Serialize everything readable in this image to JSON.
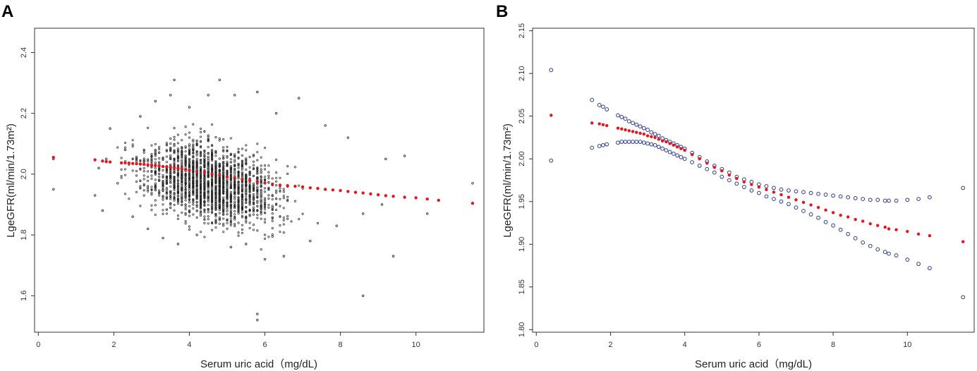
{
  "colors": {
    "scatter": "#222222",
    "fit": "#e8141b",
    "ci": "#2b3990",
    "axis": "#333333"
  },
  "chart_data": [
    {
      "panel": "A",
      "type": "scatter",
      "xlabel": "Serum uric acid（mg/dL)",
      "ylabel": "LgeGFR(ml/min/1.73m²)",
      "xlim": [
        -0.1,
        11.8
      ],
      "ylim": [
        1.48,
        2.48
      ],
      "xticks": [
        0,
        2,
        4,
        6,
        8,
        10
      ],
      "yticks": [
        1.6,
        1.8,
        2.0,
        2.2,
        2.4
      ],
      "ytick_labels": [
        "1.6",
        "1.8",
        "2.0",
        "2.2",
        "2.4"
      ],
      "series": [
        {
          "name": "observations",
          "style": "small open dots, dense cloud (~2000 points)",
          "points": [
            [
              0.4,
              1.95
            ],
            [
              0.4,
              2.05
            ],
            [
              1.5,
              1.93
            ],
            [
              1.6,
              2.02
            ],
            [
              1.7,
              1.88
            ],
            [
              1.9,
              2.15
            ],
            [
              1.8,
              2.05
            ],
            [
              2.1,
              1.97
            ],
            [
              2.3,
              2.08
            ],
            [
              2.5,
              1.86
            ],
            [
              2.7,
              2.19
            ],
            [
              2.9,
              1.82
            ],
            [
              3.1,
              2.24
            ],
            [
              3.3,
              1.79
            ],
            [
              3.5,
              2.26
            ],
            [
              3.6,
              2.31
            ],
            [
              3.7,
              1.77
            ],
            [
              4.0,
              2.22
            ],
            [
              4.2,
              1.8
            ],
            [
              4.5,
              2.26
            ],
            [
              4.8,
              2.31
            ],
            [
              5.1,
              1.76
            ],
            [
              5.2,
              2.26
            ],
            [
              5.5,
              1.77
            ],
            [
              5.8,
              2.27
            ],
            [
              6.0,
              1.72
            ],
            [
              6.3,
              2.2
            ],
            [
              6.5,
              1.73
            ],
            [
              6.9,
              2.25
            ],
            [
              7.2,
              1.78
            ],
            [
              7.6,
              2.16
            ],
            [
              7.9,
              1.83
            ],
            [
              8.2,
              2.12
            ],
            [
              8.6,
              1.87
            ],
            [
              9.1,
              1.9
            ],
            [
              9.2,
              2.05
            ],
            [
              9.4,
              1.73
            ],
            [
              9.7,
              2.06
            ],
            [
              10.3,
              1.87
            ],
            [
              11.5,
              1.97
            ],
            [
              8.6,
              1.6
            ],
            [
              5.8,
              1.54
            ],
            [
              5.8,
              1.52
            ]
          ]
        },
        {
          "name": "fitted",
          "style": "red dots",
          "x": [
            0.4,
            1.5,
            1.7,
            1.8,
            1.9,
            2.2,
            2.3,
            2.4,
            2.5,
            2.6,
            2.7,
            2.8,
            2.9,
            3.0,
            3.1,
            3.2,
            3.3,
            3.4,
            3.5,
            3.6,
            3.7,
            3.8,
            3.9,
            4.0,
            4.2,
            4.4,
            4.6,
            4.8,
            5.0,
            5.2,
            5.4,
            5.6,
            5.8,
            6.0,
            6.2,
            6.4,
            6.6,
            6.8,
            7.0,
            7.2,
            7.4,
            7.6,
            7.8,
            8.0,
            8.2,
            8.4,
            8.6,
            8.8,
            9.0,
            9.2,
            9.4,
            9.7,
            10.0,
            10.3,
            10.6,
            11.5
          ],
          "y": [
            2.055,
            2.047,
            2.043,
            2.041,
            2.04,
            2.037,
            2.037,
            2.036,
            2.035,
            2.034,
            2.033,
            2.032,
            2.031,
            2.029,
            2.028,
            2.027,
            2.025,
            2.024,
            2.022,
            2.021,
            2.019,
            2.017,
            2.015,
            2.013,
            2.009,
            2.005,
            2.0,
            1.996,
            1.991,
            1.987,
            1.983,
            1.979,
            1.975,
            1.971,
            1.967,
            1.964,
            1.962,
            1.96,
            1.958,
            1.955,
            1.953,
            1.95,
            1.948,
            1.946,
            1.943,
            1.94,
            1.938,
            1.935,
            1.932,
            1.929,
            1.927,
            1.924,
            1.922,
            1.918,
            1.914,
            1.904
          ]
        }
      ]
    },
    {
      "panel": "B",
      "type": "line",
      "xlabel": "Serum uric acid（mg/dL)",
      "ylabel": "LgeGFR(ml/min/1.73m²)",
      "xlim": [
        -0.1,
        11.8
      ],
      "ylim": [
        1.797,
        2.153
      ],
      "xticks": [
        0,
        2,
        4,
        6,
        8,
        10
      ],
      "yticks": [
        1.8,
        1.85,
        1.9,
        1.95,
        2.0,
        2.05,
        2.1,
        2.15
      ],
      "ytick_labels": [
        "1.80",
        "1.85",
        "1.90",
        "1.95",
        "2.00",
        "2.05",
        "2.10",
        "2.15"
      ],
      "series": [
        {
          "name": "fitted",
          "style": "red dots",
          "x": [
            0.4,
            1.5,
            1.7,
            1.8,
            1.9,
            2.2,
            2.3,
            2.4,
            2.5,
            2.6,
            2.7,
            2.8,
            2.9,
            3.0,
            3.1,
            3.2,
            3.3,
            3.4,
            3.5,
            3.6,
            3.7,
            3.8,
            3.9,
            4.0,
            4.2,
            4.4,
            4.6,
            4.8,
            5.0,
            5.2,
            5.4,
            5.6,
            5.8,
            6.0,
            6.2,
            6.4,
            6.6,
            6.8,
            7.0,
            7.2,
            7.4,
            7.6,
            7.8,
            8.0,
            8.2,
            8.4,
            8.6,
            8.8,
            9.0,
            9.2,
            9.4,
            9.5,
            9.7,
            10.0,
            10.3,
            10.6,
            11.5
          ],
          "y": [
            2.051,
            2.042,
            2.041,
            2.04,
            2.039,
            2.036,
            2.035,
            2.034,
            2.033,
            2.032,
            2.031,
            2.03,
            2.029,
            2.027,
            2.026,
            2.025,
            2.023,
            2.021,
            2.02,
            2.018,
            2.016,
            2.014,
            2.012,
            2.01,
            2.005,
            2.0,
            1.995,
            1.99,
            1.986,
            1.981,
            1.977,
            1.973,
            1.97,
            1.967,
            1.964,
            1.961,
            1.958,
            1.955,
            1.952,
            1.949,
            1.946,
            1.943,
            1.94,
            1.937,
            1.934,
            1.932,
            1.929,
            1.927,
            1.924,
            1.922,
            1.92,
            1.918,
            1.917,
            1.915,
            1.912,
            1.91,
            1.903
          ]
        },
        {
          "name": "upper 95% CI",
          "style": "blue open circles",
          "x": [
            0.4,
            1.5,
            1.7,
            1.8,
            1.9,
            2.2,
            2.3,
            2.4,
            2.5,
            2.6,
            2.7,
            2.8,
            2.9,
            3.0,
            3.1,
            3.2,
            3.3,
            3.4,
            3.5,
            3.6,
            3.7,
            3.8,
            3.9,
            4.0,
            4.2,
            4.4,
            4.6,
            4.8,
            5.0,
            5.2,
            5.4,
            5.6,
            5.8,
            6.0,
            6.2,
            6.4,
            6.6,
            6.8,
            7.0,
            7.2,
            7.4,
            7.6,
            7.8,
            8.0,
            8.2,
            8.4,
            8.6,
            8.8,
            9.0,
            9.2,
            9.4,
            9.5,
            9.7,
            10.0,
            10.3,
            10.6,
            11.5
          ],
          "y": [
            2.104,
            2.069,
            2.063,
            2.061,
            2.058,
            2.051,
            2.049,
            2.047,
            2.044,
            2.042,
            2.04,
            2.038,
            2.036,
            2.034,
            2.031,
            2.029,
            2.027,
            2.024,
            2.022,
            2.02,
            2.018,
            2.016,
            2.014,
            2.012,
            2.007,
            2.002,
            1.997,
            1.992,
            1.988,
            1.984,
            1.979,
            1.976,
            1.973,
            1.97,
            1.968,
            1.966,
            1.964,
            1.963,
            1.962,
            1.961,
            1.96,
            1.959,
            1.958,
            1.957,
            1.956,
            1.955,
            1.954,
            1.953,
            1.952,
            1.952,
            1.951,
            1.951,
            1.951,
            1.952,
            1.953,
            1.955,
            1.966
          ]
        },
        {
          "name": "lower 95% CI",
          "style": "blue open circles",
          "x": [
            0.4,
            1.5,
            1.7,
            1.8,
            1.9,
            2.2,
            2.3,
            2.4,
            2.5,
            2.6,
            2.7,
            2.8,
            2.9,
            3.0,
            3.1,
            3.2,
            3.3,
            3.4,
            3.5,
            3.6,
            3.7,
            3.8,
            3.9,
            4.0,
            4.2,
            4.4,
            4.6,
            4.8,
            5.0,
            5.2,
            5.4,
            5.6,
            5.8,
            6.0,
            6.2,
            6.4,
            6.6,
            6.8,
            7.0,
            7.2,
            7.4,
            7.6,
            7.8,
            8.0,
            8.2,
            8.4,
            8.6,
            8.8,
            9.0,
            9.2,
            9.4,
            9.5,
            9.7,
            10.0,
            10.3,
            10.6,
            11.5
          ],
          "y": [
            1.998,
            2.013,
            2.015,
            2.016,
            2.017,
            2.019,
            2.02,
            2.02,
            2.02,
            2.02,
            2.02,
            2.02,
            2.019,
            2.018,
            2.017,
            2.016,
            2.014,
            2.012,
            2.01,
            2.008,
            2.006,
            2.004,
            2.002,
            2.0,
            1.996,
            1.992,
            1.988,
            1.984,
            1.979,
            1.975,
            1.971,
            1.967,
            1.963,
            1.96,
            1.956,
            1.953,
            1.95,
            1.947,
            1.943,
            1.939,
            1.935,
            1.931,
            1.926,
            1.922,
            1.917,
            1.912,
            1.907,
            1.902,
            1.898,
            1.894,
            1.891,
            1.889,
            1.887,
            1.882,
            1.877,
            1.872,
            1.838
          ]
        }
      ]
    }
  ]
}
